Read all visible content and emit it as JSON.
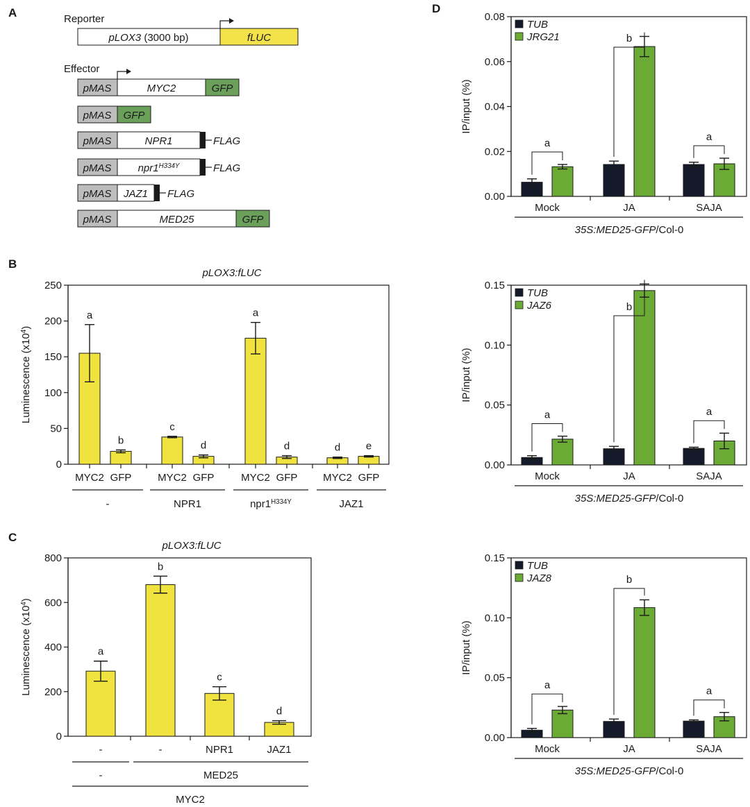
{
  "colors": {
    "yellow": "#f0e33f",
    "green": "#6aaa35",
    "dark": "#151a2a",
    "gray": "#bdbdbd",
    "construct_green": "#6ba05a",
    "construct_yellow": "#f3e24a"
  },
  "panelA": {
    "letter": "A",
    "reporter_label": "Reporter",
    "effector_label": "Effector",
    "reporter": {
      "promoter": "pLOX3",
      "size": " (3000 bp)",
      "gene": "fLUC"
    },
    "effectors": [
      {
        "promoter": "pMAS",
        "gene": "MYC2",
        "tag": "GFP",
        "tag_type": "box"
      },
      {
        "promoter": "pMAS",
        "gene": "",
        "tag": "GFP",
        "tag_type": "box"
      },
      {
        "promoter": "pMAS",
        "gene": "NPR1",
        "tag": "FLAG",
        "tag_type": "flag"
      },
      {
        "promoter": "pMAS",
        "gene": "npr1",
        "gene_sup": "H334Y",
        "tag": "FLAG",
        "tag_type": "flag"
      },
      {
        "promoter": "pMAS",
        "gene": "JAZ1",
        "tag": "FLAG",
        "tag_type": "flag"
      },
      {
        "promoter": "pMAS",
        "gene": "MED25",
        "tag": "GFP",
        "tag_type": "box"
      }
    ]
  },
  "chart_data": [
    {
      "id": "B",
      "letter": "B",
      "type": "bar",
      "title": "pLOX3:fLUC",
      "ylabel": "Luminescence (x10",
      "ylabel_sup": "4",
      "ylabel_end": ")",
      "ylim": [
        0,
        250
      ],
      "yticks": [
        "0",
        "50",
        "100",
        "150",
        "200",
        "250"
      ],
      "categories": [
        "MYC2",
        "GFP",
        "MYC2",
        "GFP",
        "MYC2",
        "GFP",
        "MYC2",
        "GFP"
      ],
      "values": [
        155,
        18,
        38,
        11,
        176,
        10,
        9,
        11
      ],
      "errors": [
        40,
        2,
        1,
        2,
        22,
        2,
        1,
        1
      ],
      "letters": [
        "a",
        "b",
        "c",
        "d",
        "a",
        "d",
        "d",
        "e"
      ],
      "groups": [
        {
          "label": "-"
        },
        {
          "label": "NPR1"
        },
        {
          "label": "npr1",
          "sup": "H334Y"
        },
        {
          "label": "JAZ1"
        }
      ]
    },
    {
      "id": "C",
      "letter": "C",
      "type": "bar",
      "title": "pLOX3:fLUC",
      "ylabel": "Luminescence (x10",
      "ylabel_sup": "4",
      "ylabel_end": ")",
      "ylim": [
        0,
        800
      ],
      "yticks": [
        "0",
        "200",
        "400",
        "600",
        "800"
      ],
      "categories": [
        "-",
        "-",
        "NPR1",
        "JAZ1"
      ],
      "values": [
        292,
        680,
        192,
        62
      ],
      "errors": [
        45,
        38,
        30,
        8
      ],
      "letters": [
        "a",
        "b",
        "c",
        "d"
      ],
      "row2": [
        "-",
        "MED25"
      ],
      "row3": "MYC2"
    },
    {
      "id": "D1",
      "letter": "D",
      "type": "bar",
      "ylabel": "IP/input (%)",
      "ylim": [
        0,
        0.08
      ],
      "yticks": [
        "0.00",
        "0.02",
        "0.04",
        "0.06",
        "0.08"
      ],
      "categories": [
        "Mock",
        "JA",
        "SAJA"
      ],
      "legend": [
        "TUB",
        "JRG21"
      ],
      "series": [
        {
          "name": "TUB",
          "values": [
            0.0063,
            0.0142,
            0.0142
          ],
          "errors": [
            0.0015,
            0.0015,
            0.001
          ]
        },
        {
          "name": "JRG21",
          "values": [
            0.0132,
            0.0667,
            0.0145
          ],
          "errors": [
            0.001,
            0.0045,
            0.0025
          ]
        }
      ],
      "letters": [
        "a",
        "b",
        "a"
      ],
      "footer_italic": "35S:MED25-GFP",
      "footer_plain": "/Col-0"
    },
    {
      "id": "D2",
      "type": "bar",
      "ylabel": "IP/input (%)",
      "ylim": [
        0,
        0.15
      ],
      "yticks": [
        "0.00",
        "0.05",
        "0.10",
        "0.15"
      ],
      "categories": [
        "Mock",
        "JA",
        "SAJA"
      ],
      "legend": [
        "TUB",
        "JAZ6"
      ],
      "series": [
        {
          "name": "TUB",
          "values": [
            0.0062,
            0.0135,
            0.0138
          ],
          "errors": [
            0.0015,
            0.002,
            0.001
          ]
        },
        {
          "name": "JAZ6",
          "values": [
            0.0215,
            0.1455,
            0.02
          ],
          "errors": [
            0.0025,
            0.0055,
            0.0065
          ]
        }
      ],
      "letters": [
        "a",
        "b",
        "a"
      ],
      "footer_italic": "35S:MED25-GFP",
      "footer_plain": "/Col-0"
    },
    {
      "id": "D3",
      "type": "bar",
      "ylabel": "IP/input (%)",
      "ylim": [
        0,
        0.15
      ],
      "yticks": [
        "0.00",
        "0.05",
        "0.10",
        "0.15"
      ],
      "categories": [
        "Mock",
        "JA",
        "SAJA"
      ],
      "legend": [
        "TUB",
        "JAZ8"
      ],
      "series": [
        {
          "name": "TUB",
          "values": [
            0.0062,
            0.0135,
            0.0138
          ],
          "errors": [
            0.0015,
            0.002,
            0.001
          ]
        },
        {
          "name": "JAZ8",
          "values": [
            0.023,
            0.1085,
            0.0175
          ],
          "errors": [
            0.003,
            0.0065,
            0.0035
          ]
        }
      ],
      "letters": [
        "a",
        "b",
        "a"
      ],
      "footer_italic": "35S:MED25-GFP",
      "footer_plain": "/Col-0"
    }
  ]
}
